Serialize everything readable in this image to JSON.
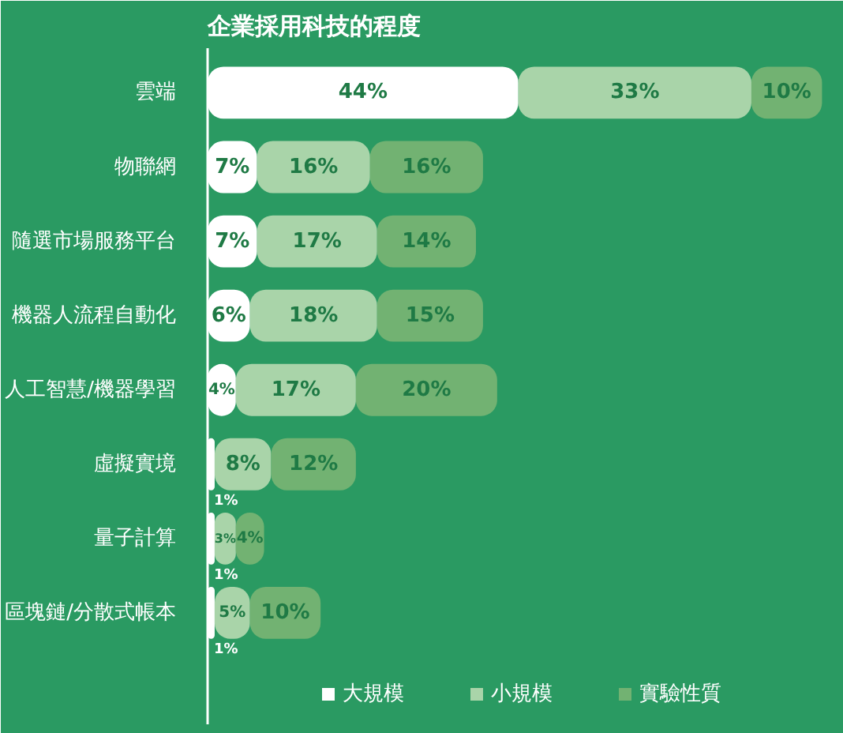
{
  "chart_data": {
    "type": "bar",
    "orientation": "horizontal",
    "stacked": true,
    "title": "企業採用科技的程度",
    "categories": [
      "雲端",
      "物聯網",
      "隨選市場服務平台",
      "機器人流程自動化",
      "人工智慧/機器學習",
      "虛擬實境",
      "量子計算",
      "區塊鏈/分散式帳本"
    ],
    "series": [
      {
        "name": "大規模",
        "color": "#ffffff",
        "values": [
          44,
          7,
          7,
          6,
          4,
          1,
          1,
          1
        ],
        "value_labels": [
          "44%",
          "7%",
          "7%",
          "6%",
          "4%",
          "1%",
          "1%",
          "1%"
        ]
      },
      {
        "name": "小規模",
        "color": "#a9d4a9",
        "values": [
          33,
          16,
          17,
          18,
          17,
          8,
          3,
          5
        ],
        "value_labels": [
          "33%",
          "16%",
          "17%",
          "18%",
          "17%",
          "8%",
          "3%",
          "5%"
        ]
      },
      {
        "name": "實驗性質",
        "color": "#72b272",
        "values": [
          10,
          16,
          14,
          15,
          20,
          12,
          4,
          10
        ],
        "value_labels": [
          "10%",
          "16%",
          "14%",
          "15%",
          "20%",
          "12%",
          "4%",
          "10%"
        ]
      }
    ],
    "legend": "bottom",
    "grid": false
  }
}
